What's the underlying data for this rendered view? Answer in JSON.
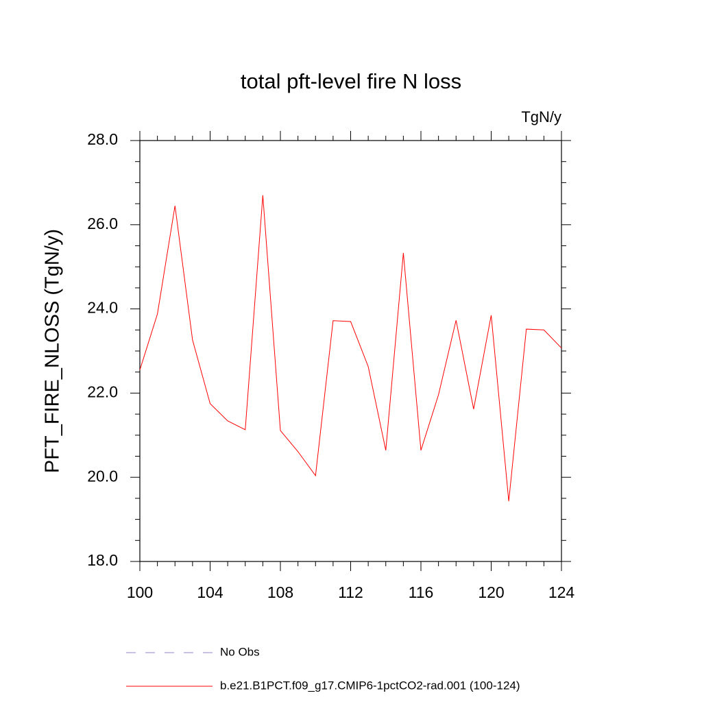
{
  "chart_data": {
    "type": "line",
    "title": "total pft-level fire N loss",
    "units": "TgN/y",
    "y_label": "PFT_FIRE_NLOSS  (TgN/y)",
    "x": [
      100,
      101,
      102,
      103,
      104,
      105,
      106,
      107,
      108,
      109,
      110,
      111,
      112,
      113,
      114,
      115,
      116,
      117,
      118,
      119,
      120,
      121,
      122,
      123,
      124
    ],
    "series": [
      {
        "name": "b.e21.B1PCT.f09_g17.CMIP6-1pctCO2-rad.001 (100-124)",
        "color": "#ff0000",
        "values": [
          22.55,
          23.88,
          26.45,
          23.26,
          21.75,
          21.34,
          21.13,
          26.7,
          21.11,
          20.61,
          20.04,
          23.72,
          23.7,
          22.63,
          20.64,
          25.33,
          20.64,
          21.96,
          23.73,
          21.62,
          23.85,
          19.43,
          23.52,
          23.5,
          23.07
        ]
      }
    ],
    "legend_extra": [
      {
        "name": "No Obs",
        "color": "#8f86d0",
        "dash": "14 14"
      }
    ],
    "xlim": [
      100,
      124
    ],
    "xticks": [
      100,
      104,
      108,
      112,
      116,
      120,
      124
    ],
    "x_minor_ticks": [
      101,
      102,
      103,
      105,
      106,
      107,
      109,
      110,
      111,
      113,
      114,
      115,
      117,
      118,
      119,
      121,
      122,
      123
    ],
    "ylim": [
      18,
      28
    ],
    "yticks": [
      {
        "value": 18,
        "label": "18.0"
      },
      {
        "value": 20,
        "label": "20.0"
      },
      {
        "value": 22,
        "label": "22.0"
      },
      {
        "value": 24,
        "label": "24.0"
      },
      {
        "value": 26,
        "label": "26.0"
      },
      {
        "value": 28,
        "label": "28.0"
      }
    ],
    "y_minor_ticks": [
      18.5,
      19,
      19.5,
      20.5,
      21,
      21.5,
      22.5,
      23,
      23.5,
      24.5,
      25,
      25.5,
      26.5,
      27,
      27.5
    ]
  }
}
